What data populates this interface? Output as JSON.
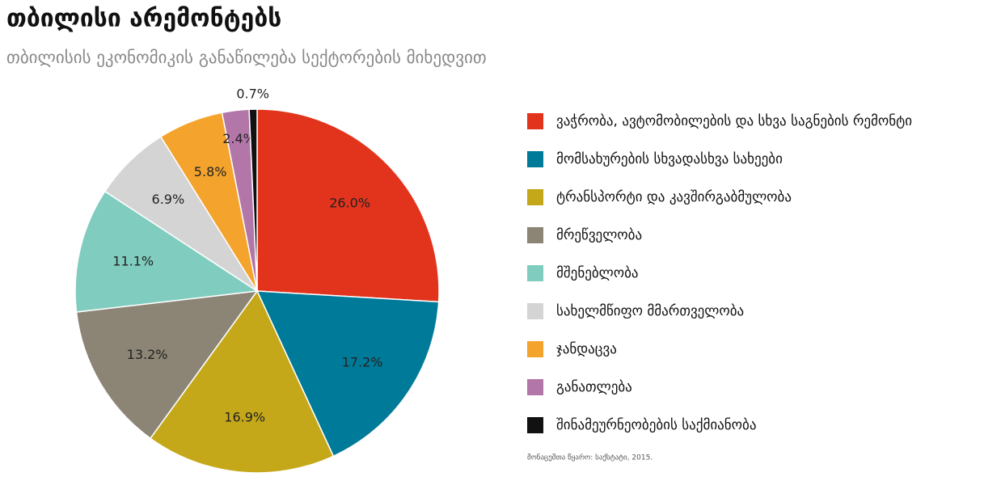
{
  "chart_data": {
    "type": "pie",
    "title": "თბილისი არემონტებს",
    "subtitle": "თბილისის ეკონომიკის განაწილება სექტორების მიხედვით",
    "source": "მონაცემთა წყარო: საქსტატი, 2015.",
    "categories": [
      "ვაჭრობა, ავტომობილების და სხვა საგნების რემონტი",
      "მომსახურების სხვადასხვა სახეები",
      "ტრანსპორტი და კავშირგაბმულობა",
      "მრეწველობა",
      "მშენებლობა",
      "სახელმწიფო მმართველობა",
      "ჯანდაცვა",
      "განათლება",
      "შინამეურნეობების საქმიანობა"
    ],
    "values": [
      26.0,
      17.2,
      16.9,
      13.2,
      11.1,
      6.9,
      5.8,
      2.4,
      0.7
    ],
    "value_labels": [
      "26.0%",
      "17.2%",
      "16.9%",
      "13.2%",
      "11.1%",
      "6.9%",
      "5.8%",
      "2.4%",
      "0.7%"
    ],
    "colors": [
      "#e2341d",
      "#007a99",
      "#c4a81a",
      "#8c8575",
      "#80cdbf",
      "#d4d4d4",
      "#f4a32d",
      "#b376a8",
      "#111111"
    ]
  }
}
